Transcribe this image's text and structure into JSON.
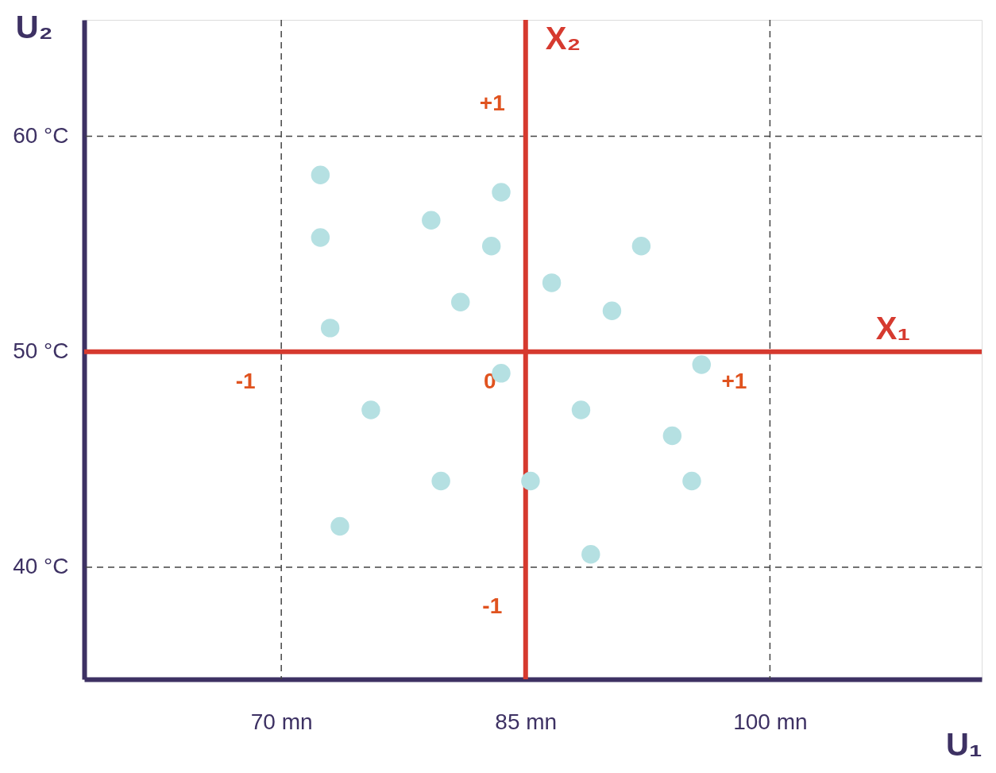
{
  "chart_data": {
    "type": "scatter",
    "xlabel": "U₁",
    "ylabel": "U₂",
    "x": [
      72.4,
      83.5,
      79.2,
      72.4,
      82.9,
      92.1,
      86.6,
      81.0,
      90.3,
      73.0,
      95.8,
      83.5,
      75.5,
      88.4,
      94.0,
      79.8,
      85.3,
      95.2,
      73.6,
      89.0
    ],
    "series": [
      {
        "color": "#b5e0e2",
        "values": [
          58.2,
          57.4,
          56.1,
          55.3,
          54.9,
          54.9,
          53.2,
          52.3,
          51.9,
          51.1,
          49.4,
          49.0,
          47.3,
          47.3,
          46.1,
          44.0,
          44.0,
          44.0,
          41.9,
          40.6
        ]
      }
    ],
    "marker": "circle",
    "xlim": [
      57.9,
      113
    ],
    "ylim": [
      34.8,
      65.4
    ],
    "xticks": [
      {
        "value": 70,
        "label": "70 mn"
      },
      {
        "value": 85,
        "label": "85 mn"
      },
      {
        "value": 100,
        "label": "100 mn"
      }
    ],
    "yticks": [
      {
        "value": 40,
        "label": "40 °C"
      },
      {
        "value": 50,
        "label": "50 °C"
      },
      {
        "value": 60,
        "label": "60 °C"
      }
    ],
    "grid": false,
    "ref_lines": [
      {
        "axis": "x",
        "value": 70,
        "color": "#444444",
        "line_style": "dashed"
      },
      {
        "axis": "x",
        "value": 100,
        "color": "#444444",
        "line_style": "dashed"
      },
      {
        "axis": "y",
        "value": 40,
        "color": "#444444",
        "line_style": "dashed"
      },
      {
        "axis": "y",
        "value": 60,
        "color": "#444444",
        "line_style": "dashed"
      },
      {
        "axis": "y",
        "value": 50,
        "label": "X₁",
        "color": "#d63a2f",
        "line_style": "solid"
      },
      {
        "axis": "x",
        "value": 85,
        "label": "X₂",
        "color": "#d63a2f",
        "line_style": "solid"
      }
    ],
    "annotations": [
      {
        "text": "-1",
        "x": 70,
        "y": 50
      },
      {
        "text": "0",
        "x": 85,
        "y": 50
      },
      {
        "text": "+1",
        "x": 100,
        "y": 50
      },
      {
        "text": "+1",
        "x": 85,
        "y": 60
      },
      {
        "text": "-1",
        "x": 85,
        "y": 40
      }
    ]
  }
}
